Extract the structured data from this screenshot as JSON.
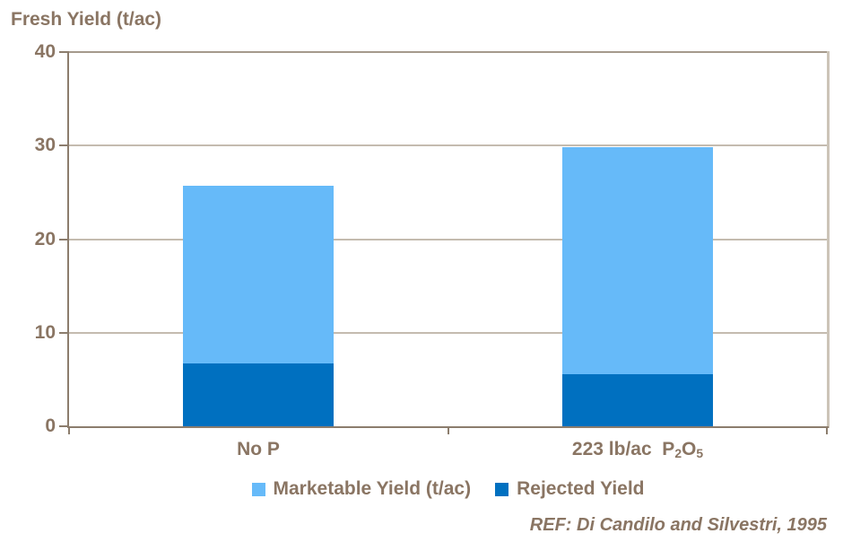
{
  "title": "Fresh Yield (t/ac)",
  "colors": {
    "marketable_blue": "#66BAF9",
    "rejected_blue": "#0070C0",
    "text_brown": "#8A7563",
    "axis_line": "#8C7D6D",
    "gridline": "#C4BBAF",
    "plot_border_top": "#A59A8C",
    "plot_border_right": "#CCC4B8",
    "background": "#FFFFFF"
  },
  "y_axis": {
    "tick_labels": [
      "0",
      "10",
      "20",
      "30",
      "40"
    ]
  },
  "x_axis": {
    "labels": [
      "No P",
      "223 lb/ac P₂O₅"
    ],
    "label2_parts": {
      "prefix": "223 lb/ac  P",
      "sub1": "2",
      "mid": "O",
      "sub2": "5"
    }
  },
  "legend": {
    "items": [
      {
        "key": "marketable",
        "label": "Marketable Yield (t/ac)",
        "color": "#66BAF9"
      },
      {
        "key": "rejected",
        "label": "Rejected Yield",
        "color": "#0070C0"
      }
    ]
  },
  "reference": "REF: Di Candilo and Silvestri, 1995",
  "chart_data": {
    "type": "bar",
    "stacked": true,
    "title": "Fresh Yield (t/ac)",
    "ylabel": "Fresh Yield (t/ac)",
    "xlabel": "",
    "ylim": [
      0,
      40
    ],
    "y_ticks": [
      0,
      10,
      20,
      30,
      40
    ],
    "grid": "horizontal",
    "legend_position": "bottom",
    "categories": [
      "No P",
      "223 lb/ac P₂O₅"
    ],
    "series": [
      {
        "name": "Rejected Yield",
        "key": "rejected",
        "color": "#0070C0",
        "values": [
          6.7,
          5.6
        ]
      },
      {
        "name": "Marketable Yield (t/ac)",
        "key": "marketable",
        "color": "#66BAF9",
        "values": [
          19.0,
          24.2
        ]
      }
    ],
    "totals": [
      25.7,
      29.8
    ]
  }
}
